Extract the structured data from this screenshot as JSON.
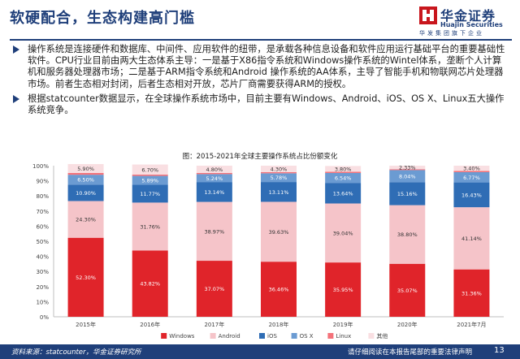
{
  "slide": {
    "title": "软硬配合，生态构建高门槛",
    "page_number": "13"
  },
  "logo": {
    "name": "华金证券",
    "english": "Huajin Securities",
    "subtitle": "华发集团旗下企业"
  },
  "bullets": [
    "操作系统是连接硬件和数据库、中间件、应用软件的纽带，是承载各种信息设备和软件应用运行基础平台的重要基础性软件。CPU行业目前由两大生态体系主导：一是基于X86指令系统和Windows操作系统的Wintel体系，垄断个人计算机和服务器处理器市场；二是基于ARM指令系统和Android 操作系统的AA体系，主导了智能手机和物联网芯片处理器市场。前者生态相对封闭，后者生态相对开放，芯片厂商需要获得ARM的授权。",
    "根据statcounter数据显示，在全球操作系统市场中，目前主要有Windows、Android、iOS、OS X、Linux五大操作系统竞争。"
  ],
  "footer": {
    "source": "资料来源：statcounter，华金证券研究所",
    "disclaimer": "请仔细阅读在本报告尾部的重要法律声明"
  },
  "colors": {
    "brand": "#1f3f7a",
    "windows": "#e0242a",
    "android": "#f5c4c9",
    "ios": "#2f6db5",
    "osx": "#6b9bd2",
    "linux": "#f4727a",
    "other": "#f9dfe2"
  },
  "chart_data": {
    "type": "bar",
    "stacked": true,
    "title": "图：2015-2021年全球主要操作系统占比份额变化",
    "categories": [
      "2015年",
      "2016年",
      "2017年",
      "2018年",
      "2019年",
      "2020年",
      "2021年7月"
    ],
    "ylim": [
      0,
      100
    ],
    "yticks": [
      "0%",
      "10%",
      "20%",
      "30%",
      "40%",
      "50%",
      "60%",
      "70%",
      "80%",
      "90%",
      "100%"
    ],
    "legend_position": "bottom",
    "series": [
      {
        "name": "Windows",
        "color": "#e0242a",
        "values": [
          52.3,
          43.82,
          37.07,
          36.46,
          35.95,
          35.07,
          31.36
        ],
        "labels": [
          "52.30%",
          "43.82%",
          "37.07%",
          "36.46%",
          "35.95%",
          "35.07%",
          "31.36%"
        ]
      },
      {
        "name": "Android",
        "color": "#f5c4c9",
        "values": [
          24.3,
          31.76,
          38.97,
          39.63,
          39.04,
          38.8,
          41.14
        ],
        "labels": [
          "24.30%",
          "31.76%",
          "38.97%",
          "39.63%",
          "39.04%",
          "38.80%",
          "41.14%"
        ]
      },
      {
        "name": "iOS",
        "color": "#2f6db5",
        "values": [
          10.9,
          11.77,
          13.14,
          13.11,
          13.64,
          15.16,
          16.43
        ],
        "labels": [
          "10.90%",
          "11.77%",
          "13.14%",
          "13.11%",
          "13.64%",
          "15.16%",
          "16.43%"
        ]
      },
      {
        "name": "OS X",
        "color": "#6b9bd2",
        "values": [
          6.5,
          5.89,
          5.24,
          5.78,
          6.54,
          8.04,
          6.77
        ],
        "labels": [
          "6.50%",
          "5.89%",
          "5.24%",
          "5.78%",
          "6.54%",
          "8.04%",
          "6.77%"
        ]
      },
      {
        "name": "Linux",
        "color": "#f4727a",
        "values": [
          1.2,
          0.84,
          0.8,
          0.72,
          0.85,
          0.6,
          0.9
        ],
        "labels": [
          "",
          "",
          "",
          "",
          "",
          "",
          ""
        ]
      },
      {
        "name": "其他",
        "color": "#f9dfe2",
        "values": [
          5.9,
          6.7,
          4.8,
          4.3,
          3.8,
          2.33,
          3.4
        ],
        "labels": [
          "5.90%",
          "6.70%",
          "4.80%",
          "4.30%",
          "3.80%",
          "2.33%",
          "3.40%"
        ]
      }
    ]
  }
}
